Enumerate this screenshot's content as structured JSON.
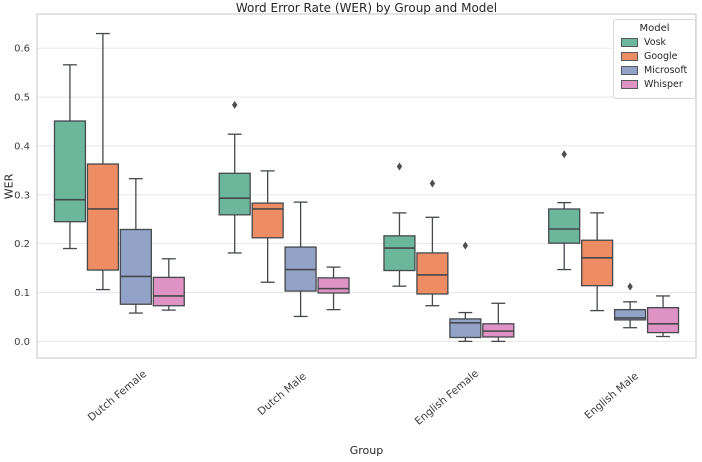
{
  "chart_data": {
    "type": "boxplot",
    "title": "Word Error Rate (WER) by Group and Model",
    "xlabel": "Group",
    "ylabel": "WER",
    "legend_title": "Model",
    "legend_position": "upper right",
    "grid": true,
    "categories": [
      "Dutch Female",
      "Dutch Male",
      "English Female",
      "English Male"
    ],
    "yticks": [
      0.0,
      0.1,
      0.2,
      0.3,
      0.4,
      0.5,
      0.6
    ],
    "ylim": [
      -0.034,
      0.67
    ],
    "colors": {
      "box_edge": "#45484d",
      "grid_line": "#e7e7ea",
      "spine": "#cdced3",
      "tick_text": "#3c3c3c",
      "flier": "#4d4d52"
    },
    "series": [
      {
        "name": "Vosk",
        "color": "#6cb69b",
        "boxes": [
          {
            "lo": 0.19,
            "q1": 0.245,
            "med": 0.29,
            "q3": 0.451,
            "hi": 0.566,
            "outliers": []
          },
          {
            "lo": 0.181,
            "q1": 0.259,
            "med": 0.293,
            "q3": 0.344,
            "hi": 0.424,
            "outliers": [
              0.484
            ]
          },
          {
            "lo": 0.113,
            "q1": 0.145,
            "med": 0.191,
            "q3": 0.216,
            "hi": 0.263,
            "outliers": [
              0.358
            ]
          },
          {
            "lo": 0.147,
            "q1": 0.201,
            "med": 0.23,
            "q3": 0.271,
            "hi": 0.284,
            "outliers": [
              0.383
            ]
          }
        ]
      },
      {
        "name": "Google",
        "color": "#ee8c64",
        "boxes": [
          {
            "lo": 0.106,
            "q1": 0.146,
            "med": 0.271,
            "q3": 0.363,
            "hi": 0.63,
            "outliers": []
          },
          {
            "lo": 0.121,
            "q1": 0.212,
            "med": 0.271,
            "q3": 0.283,
            "hi": 0.349,
            "outliers": []
          },
          {
            "lo": 0.073,
            "q1": 0.097,
            "med": 0.136,
            "q3": 0.181,
            "hi": 0.254,
            "outliers": [
              0.323
            ]
          },
          {
            "lo": 0.063,
            "q1": 0.114,
            "med": 0.171,
            "q3": 0.207,
            "hi": 0.263,
            "outliers": []
          }
        ]
      },
      {
        "name": "Microsoft",
        "color": "#92a3c7",
        "boxes": [
          {
            "lo": 0.058,
            "q1": 0.076,
            "med": 0.133,
            "q3": 0.229,
            "hi": 0.333,
            "outliers": []
          },
          {
            "lo": 0.051,
            "q1": 0.103,
            "med": 0.147,
            "q3": 0.193,
            "hi": 0.285,
            "outliers": []
          },
          {
            "lo": 0.0,
            "q1": 0.008,
            "med": 0.038,
            "q3": 0.046,
            "hi": 0.059,
            "outliers": [
              0.196
            ]
          },
          {
            "lo": 0.028,
            "q1": 0.044,
            "med": 0.048,
            "q3": 0.065,
            "hi": 0.081,
            "outliers": [
              0.112
            ]
          }
        ]
      },
      {
        "name": "Whisper",
        "color": "#df92c4",
        "boxes": [
          {
            "lo": 0.064,
            "q1": 0.073,
            "med": 0.093,
            "q3": 0.131,
            "hi": 0.169,
            "outliers": []
          },
          {
            "lo": 0.065,
            "q1": 0.099,
            "med": 0.108,
            "q3": 0.13,
            "hi": 0.152,
            "outliers": []
          },
          {
            "lo": 0.0,
            "q1": 0.009,
            "med": 0.021,
            "q3": 0.036,
            "hi": 0.078,
            "outliers": []
          },
          {
            "lo": 0.01,
            "q1": 0.018,
            "med": 0.036,
            "q3": 0.069,
            "hi": 0.093,
            "outliers": []
          }
        ]
      }
    ]
  }
}
